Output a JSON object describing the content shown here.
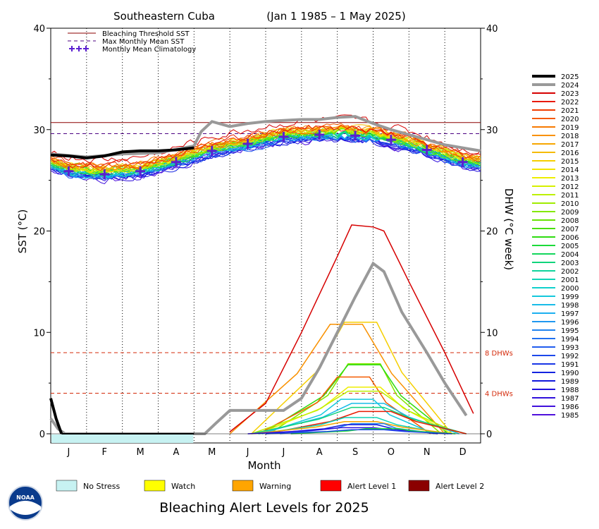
{
  "chart_data": {
    "type": "line",
    "title": "Southeastern Cuba",
    "date_range": "(Jan 1 1985 – 1 May 2025)",
    "xlabel": "Month",
    "ylabel_left": "SST (°C)",
    "ylabel_right": "DHW (°C week)",
    "ylim": [
      0,
      40
    ],
    "yticks": [
      "0",
      "10",
      "20",
      "30",
      "40"
    ],
    "months": [
      "J",
      "F",
      "M",
      "A",
      "M",
      "J",
      "J",
      "A",
      "S",
      "O",
      "N",
      "D"
    ],
    "bleaching_threshold": 30.7,
    "max_monthly_mean": 29.6,
    "dhw_thresholds": [
      {
        "value": 8,
        "label": "8 DHWs"
      },
      {
        "value": 4,
        "label": "4 DHWs"
      }
    ],
    "legend_top": [
      {
        "label": "Bleaching Threshold SST",
        "color": "#8b0000",
        "style": "solid"
      },
      {
        "label": "Max Monthly Mean SST",
        "color": "#4b0082",
        "style": "dashed"
      },
      {
        "label": "Monthly Mean Climatology",
        "color": "#5b1fd0",
        "style": "plus"
      }
    ],
    "climatology": {
      "x": [
        0.5,
        1.5,
        2.5,
        3.5,
        4.5,
        5.5,
        6.5,
        7.5,
        8.5,
        9.5,
        10.5,
        11.5
      ],
      "y": [
        25.9,
        25.6,
        25.9,
        26.8,
        27.9,
        28.6,
        29.3,
        29.5,
        29.4,
        29.0,
        28.0,
        26.8
      ]
    },
    "sst_2025": {
      "x": [
        0,
        0.5,
        1,
        1.5,
        2,
        2.5,
        3,
        3.5,
        4
      ],
      "y": [
        27.5,
        27.4,
        27.2,
        27.4,
        27.8,
        27.9,
        27.9,
        28.0,
        28.2
      ]
    },
    "sst_2024": {
      "x": [
        0,
        1,
        2,
        3,
        4,
        4.2,
        4.5,
        5,
        5.5,
        6,
        6.5,
        7,
        7.5,
        8,
        8.5,
        9,
        9.5,
        10,
        10.5,
        11,
        11.5,
        12
      ],
      "y": [
        27.6,
        27.3,
        27.6,
        27.7,
        28.4,
        29.8,
        30.8,
        30.3,
        30.6,
        30.8,
        30.9,
        31.0,
        31.0,
        31.2,
        31.3,
        30.6,
        30.0,
        29.5,
        29.0,
        28.5,
        28.2,
        27.9
      ]
    },
    "dhw_2025": {
      "x": [
        0,
        0.15,
        0.3
      ],
      "y": [
        3.5,
        1.5,
        0
      ]
    },
    "dhw_2024": {
      "x": [
        0,
        0.2,
        0.4,
        4.3,
        4.6,
        5.0,
        6.5,
        7.0,
        7.5,
        8.0,
        8.5,
        9.0,
        9.3,
        9.8,
        10.5,
        11.0,
        11.6
      ],
      "y": [
        1.5,
        0.5,
        0,
        0,
        1.0,
        2.3,
        2.3,
        3.5,
        6.5,
        10.0,
        13.5,
        16.8,
        16.0,
        12.0,
        8.0,
        5.0,
        1.8
      ]
    },
    "dhw_peak_2023": {
      "x": [
        5.0,
        6.0,
        7.0,
        8.0,
        8.4,
        9.0,
        9.3,
        10.0,
        11.0,
        11.8
      ],
      "y": [
        0.2,
        3.0,
        10.0,
        17.5,
        20.6,
        20.4,
        20.0,
        15.0,
        8.0,
        2.0
      ]
    },
    "alert_bar": {
      "levels": [
        "No Stress"
      ],
      "fill_fraction": 0.33
    },
    "alert_legend": [
      {
        "label": "No Stress",
        "color": "#c7f2f2"
      },
      {
        "label": "Watch",
        "color": "#ffff00"
      },
      {
        "label": "Warning",
        "color": "#ffa500"
      },
      {
        "label": "Alert Level 1",
        "color": "#ff0000"
      },
      {
        "label": "Alert Level 2",
        "color": "#8b0000"
      }
    ],
    "alert_title": "Bleaching Alert Levels for 2025",
    "years": [
      "2025",
      "2024",
      "2023",
      "2022",
      "2021",
      "2020",
      "2019",
      "2018",
      "2017",
      "2016",
      "2015",
      "2014",
      "2013",
      "2012",
      "2011",
      "2010",
      "2009",
      "2008",
      "2007",
      "2006",
      "2005",
      "2004",
      "2003",
      "2002",
      "2001",
      "2000",
      "1999",
      "1998",
      "1997",
      "1996",
      "1995",
      "1994",
      "1993",
      "1992",
      "1991",
      "1990",
      "1989",
      "1988",
      "1987",
      "1986",
      "1985"
    ],
    "year_colors": [
      "#000000",
      "#999999",
      "#d60000",
      "#e81a00",
      "#f03c00",
      "#f55a00",
      "#f77a00",
      "#f99100",
      "#f7a600",
      "#f5bb00",
      "#f5cf00",
      "#f2e400",
      "#eeee00",
      "#d6f000",
      "#bdf000",
      "#a0ec00",
      "#84e800",
      "#66e400",
      "#48e000",
      "#2edc10",
      "#1cda3a",
      "#14d65c",
      "#10d47c",
      "#10d49c",
      "#10d4b6",
      "#10d0cc",
      "#14c8dc",
      "#18bce8",
      "#1cb0f0",
      "#2098f0",
      "#2084f0",
      "#2070f0",
      "#205cee",
      "#1c48ea",
      "#1836e6",
      "#1424e0",
      "#1018dc",
      "#2010dc",
      "#3010dc",
      "#4010dc",
      "#5010dc"
    ]
  },
  "logo": {
    "text": "NOAA"
  }
}
